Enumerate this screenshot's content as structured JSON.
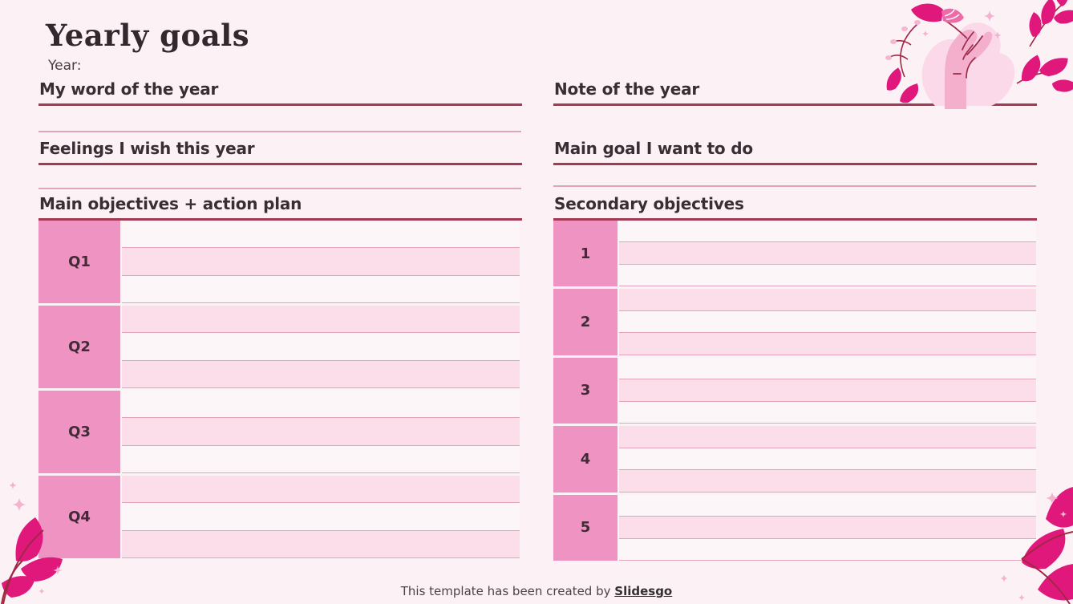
{
  "header": {
    "title": "Yearly goals",
    "year_label": "Year:"
  },
  "left": {
    "word_heading": "My word of the year",
    "feelings_heading": "Feelings I wish this year",
    "objectives_heading": "Main objectives + action plan",
    "table": {
      "labels": [
        "Q1",
        "Q2",
        "Q3",
        "Q4"
      ],
      "rows_per_block": 3
    }
  },
  "right": {
    "note_heading": "Note of the year",
    "goal_heading": "Main goal I want to do",
    "secondary_heading": "Secondary objectives",
    "table": {
      "labels": [
        "1",
        "2",
        "3",
        "4",
        "5"
      ],
      "rows_per_block": 3
    }
  },
  "footer": {
    "credit_text": "This template has been created by ",
    "brand": "Slidesgo"
  },
  "colors": {
    "background": "#fcf2f6",
    "accent_dark_red": "#a23a55",
    "label_pink": "#ef93c3",
    "stripe_pink": "#fcdeeb",
    "stripe_light": "#fdf6f9",
    "thin_line_pink": "#dfa6b8",
    "leaf_magenta": "#e0187c",
    "hand_pink": "#f3afcc",
    "sparkle_pink": "#f4b2cf",
    "text_dark": "#3a2d33"
  },
  "icons": {
    "top_right": "hand-holding-butterfly-illustration",
    "bottom_left": "corner-leaves-illustration",
    "bottom_right": "corner-leaves-illustration"
  }
}
